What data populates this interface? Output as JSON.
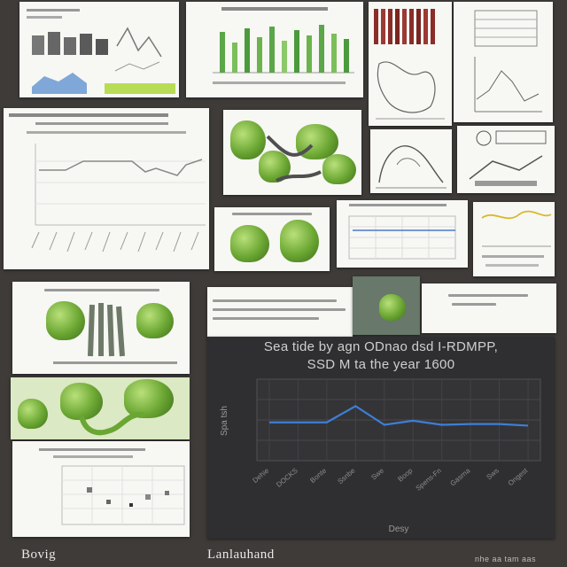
{
  "colors": {
    "background": "#3e3b39",
    "dark_panel": "#2f2f31",
    "series_line": "#3d7fd6",
    "vegetable_green": "#6aa632"
  },
  "featured_chart": {
    "title": "Sea tide by agn ODnao dsd I-RDMPP,\nSSD M ta the year 1600",
    "ylabel": "Spa tsh",
    "xlabel": "Desy"
  },
  "chart_data": {
    "type": "line",
    "x": [
      "Dehie",
      "DOCKS",
      "Bonte",
      "Ssnbe",
      "Swe",
      "Boop",
      "Spens-Fn",
      "Gasrna",
      "Sws",
      "Ongest"
    ],
    "values": [
      47,
      47,
      47,
      67,
      44,
      49,
      44,
      45,
      45,
      43
    ],
    "ylabel": "Spa tsh",
    "xlabel": "Desy",
    "ylim": [
      0,
      100
    ],
    "grid": true
  },
  "captions": {
    "bottom_left": "Bovig",
    "bottom_center": "Lanlauhand",
    "bottom_right": "nhe aa tam aas"
  }
}
